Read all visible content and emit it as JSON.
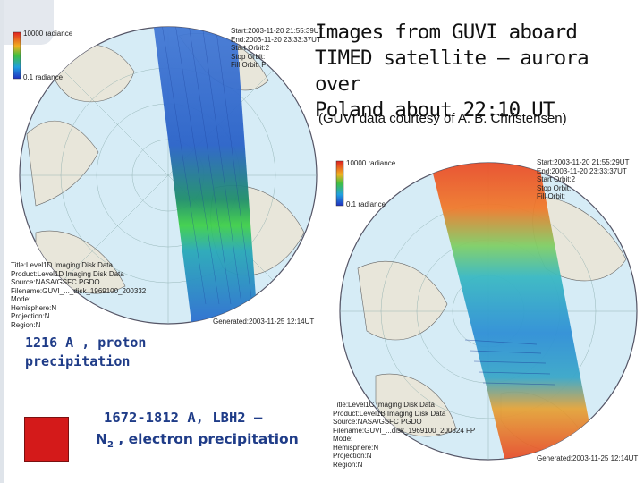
{
  "title": {
    "line1": "Images from  GUVI aboard",
    "line2": "TIMED satellite – aurora over",
    "line3": "Poland about 22:10 UT"
  },
  "credit": "(GUVI data  courtesy of A. B. Christensen)",
  "caption_proton": {
    "line1": "1216 A , proton",
    "line2": "precipitation"
  },
  "caption_electron": {
    "line1": "1672-1812 A, LBH2 –",
    "species": "N",
    "species_sub": "2",
    "rest": " , electron precipitation"
  },
  "map_left": {
    "colorbar_top": "10000 radiance",
    "colorbar_bottom": "0.1 radiance",
    "header_lines": [
      "Start:2003-11-20 21:55:39UT",
      "End:2003-11-20 23:33:37UT",
      "Start Orbit:2",
      "Stop Orbit:",
      "Fill Orbit: F"
    ],
    "meta_lines": [
      "Title:Level1D Imaging Disk Data",
      "Product:Level1D Imaging Disk Data",
      "Source:NASA/GSFC PGDO",
      "Filename:GUVI_..._disk_1969100_200332",
      "Mode:",
      "Hemisphere:N",
      "Projection:N",
      "Region:N"
    ],
    "generated": "Generated:2003-11-25 12:14UT"
  },
  "map_right": {
    "colorbar_top": "10000 radiance",
    "colorbar_bottom": "0.1 radiance",
    "header_lines": [
      "Start:2003-11-20 21:55:29UT",
      "End:2003-11-20 23:33:37UT",
      "Start Orbit:2",
      "Stop Orbit:",
      "Fill Orbit:"
    ],
    "meta_lines": [
      "Title:Level1C Imaging Disk Data",
      "Product:Level1B Imaging Disk Data",
      "Source:NASA/GSFC PGDO",
      "Filename:GUVI_...disk_1969100_200324 FP",
      "Mode:",
      "Hemisphere:N",
      "Projection:N",
      "Region:N"
    ],
    "generated": "Generated:2003-11-25 12:14UT"
  },
  "colors": {
    "caption_blue": "#1f3c88",
    "swatch_red": "#d41a1a"
  }
}
